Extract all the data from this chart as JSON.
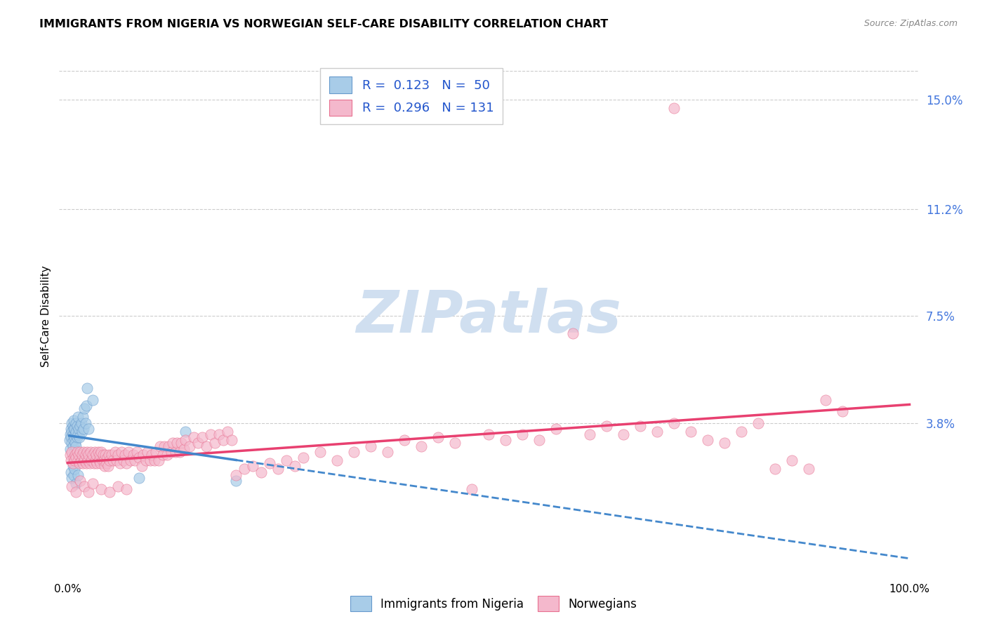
{
  "title": "IMMIGRANTS FROM NIGERIA VS NORWEGIAN SELF-CARE DISABILITY CORRELATION CHART",
  "source": "Source: ZipAtlas.com",
  "ylabel": "Self-Care Disability",
  "right_yticks": [
    0.038,
    0.075,
    0.112,
    0.15
  ],
  "right_yticklabels": [
    "3.8%",
    "7.5%",
    "11.2%",
    "15.0%"
  ],
  "ymin": -0.015,
  "ymax": 0.165,
  "xmin": -0.01,
  "xmax": 1.01,
  "color_blue": "#a8cce8",
  "color_pink": "#f4b8cc",
  "color_blue_edge": "#6699cc",
  "color_pink_edge": "#e87090",
  "trendline_blue_color": "#4488cc",
  "trendline_pink_color": "#e84070",
  "watermark_color": "#d0dff0",
  "grid_color": "#cccccc",
  "background_color": "#ffffff",
  "blue_scatter": [
    [
      0.002,
      0.032
    ],
    [
      0.003,
      0.034
    ],
    [
      0.003,
      0.029
    ],
    [
      0.004,
      0.033
    ],
    [
      0.004,
      0.036
    ],
    [
      0.005,
      0.031
    ],
    [
      0.005,
      0.035
    ],
    [
      0.005,
      0.038
    ],
    [
      0.006,
      0.03
    ],
    [
      0.006,
      0.034
    ],
    [
      0.006,
      0.037
    ],
    [
      0.007,
      0.032
    ],
    [
      0.007,
      0.036
    ],
    [
      0.007,
      0.039
    ],
    [
      0.008,
      0.033
    ],
    [
      0.008,
      0.036
    ],
    [
      0.008,
      0.028
    ],
    [
      0.009,
      0.034
    ],
    [
      0.009,
      0.031
    ],
    [
      0.01,
      0.035
    ],
    [
      0.01,
      0.03
    ],
    [
      0.01,
      0.038
    ],
    [
      0.011,
      0.033
    ],
    [
      0.011,
      0.037
    ],
    [
      0.012,
      0.034
    ],
    [
      0.012,
      0.04
    ],
    [
      0.013,
      0.036
    ],
    [
      0.014,
      0.033
    ],
    [
      0.015,
      0.037
    ],
    [
      0.016,
      0.038
    ],
    [
      0.017,
      0.035
    ],
    [
      0.018,
      0.04
    ],
    [
      0.019,
      0.036
    ],
    [
      0.02,
      0.043
    ],
    [
      0.021,
      0.038
    ],
    [
      0.022,
      0.044
    ],
    [
      0.023,
      0.05
    ],
    [
      0.025,
      0.036
    ],
    [
      0.03,
      0.046
    ],
    [
      0.004,
      0.021
    ],
    [
      0.005,
      0.019
    ],
    [
      0.006,
      0.023
    ],
    [
      0.007,
      0.02
    ],
    [
      0.008,
      0.022
    ],
    [
      0.01,
      0.017
    ],
    [
      0.012,
      0.02
    ],
    [
      0.085,
      0.019
    ],
    [
      0.14,
      0.035
    ],
    [
      0.2,
      0.018
    ]
  ],
  "pink_scatter": [
    [
      0.003,
      0.027
    ],
    [
      0.004,
      0.025
    ],
    [
      0.005,
      0.028
    ],
    [
      0.006,
      0.024
    ],
    [
      0.007,
      0.026
    ],
    [
      0.008,
      0.025
    ],
    [
      0.009,
      0.027
    ],
    [
      0.01,
      0.026
    ],
    [
      0.011,
      0.028
    ],
    [
      0.012,
      0.025
    ],
    [
      0.013,
      0.027
    ],
    [
      0.014,
      0.024
    ],
    [
      0.015,
      0.028
    ],
    [
      0.016,
      0.025
    ],
    [
      0.017,
      0.027
    ],
    [
      0.018,
      0.024
    ],
    [
      0.019,
      0.028
    ],
    [
      0.02,
      0.025
    ],
    [
      0.021,
      0.027
    ],
    [
      0.022,
      0.024
    ],
    [
      0.023,
      0.028
    ],
    [
      0.024,
      0.025
    ],
    [
      0.025,
      0.027
    ],
    [
      0.026,
      0.024
    ],
    [
      0.027,
      0.028
    ],
    [
      0.028,
      0.025
    ],
    [
      0.03,
      0.027
    ],
    [
      0.031,
      0.024
    ],
    [
      0.032,
      0.028
    ],
    [
      0.033,
      0.025
    ],
    [
      0.034,
      0.027
    ],
    [
      0.035,
      0.024
    ],
    [
      0.036,
      0.028
    ],
    [
      0.037,
      0.025
    ],
    [
      0.038,
      0.027
    ],
    [
      0.039,
      0.024
    ],
    [
      0.04,
      0.028
    ],
    [
      0.041,
      0.025
    ],
    [
      0.042,
      0.027
    ],
    [
      0.043,
      0.025
    ],
    [
      0.044,
      0.023
    ],
    [
      0.045,
      0.027
    ],
    [
      0.046,
      0.024
    ],
    [
      0.047,
      0.026
    ],
    [
      0.048,
      0.023
    ],
    [
      0.049,
      0.027
    ],
    [
      0.05,
      0.025
    ],
    [
      0.052,
      0.027
    ],
    [
      0.054,
      0.025
    ],
    [
      0.056,
      0.028
    ],
    [
      0.058,
      0.025
    ],
    [
      0.06,
      0.027
    ],
    [
      0.062,
      0.024
    ],
    [
      0.064,
      0.028
    ],
    [
      0.066,
      0.025
    ],
    [
      0.068,
      0.027
    ],
    [
      0.07,
      0.024
    ],
    [
      0.072,
      0.028
    ],
    [
      0.075,
      0.025
    ],
    [
      0.078,
      0.027
    ],
    [
      0.08,
      0.025
    ],
    [
      0.082,
      0.028
    ],
    [
      0.085,
      0.026
    ],
    [
      0.088,
      0.023
    ],
    [
      0.09,
      0.027
    ],
    [
      0.093,
      0.025
    ],
    [
      0.095,
      0.028
    ],
    [
      0.098,
      0.025
    ],
    [
      0.1,
      0.027
    ],
    [
      0.103,
      0.025
    ],
    [
      0.105,
      0.028
    ],
    [
      0.108,
      0.025
    ],
    [
      0.11,
      0.03
    ],
    [
      0.113,
      0.027
    ],
    [
      0.115,
      0.03
    ],
    [
      0.118,
      0.027
    ],
    [
      0.12,
      0.03
    ],
    [
      0.123,
      0.028
    ],
    [
      0.125,
      0.031
    ],
    [
      0.128,
      0.028
    ],
    [
      0.13,
      0.031
    ],
    [
      0.133,
      0.028
    ],
    [
      0.135,
      0.031
    ],
    [
      0.138,
      0.029
    ],
    [
      0.14,
      0.032
    ],
    [
      0.145,
      0.03
    ],
    [
      0.15,
      0.033
    ],
    [
      0.155,
      0.031
    ],
    [
      0.16,
      0.033
    ],
    [
      0.165,
      0.03
    ],
    [
      0.17,
      0.034
    ],
    [
      0.175,
      0.031
    ],
    [
      0.18,
      0.034
    ],
    [
      0.185,
      0.032
    ],
    [
      0.19,
      0.035
    ],
    [
      0.195,
      0.032
    ],
    [
      0.2,
      0.02
    ],
    [
      0.21,
      0.022
    ],
    [
      0.22,
      0.023
    ],
    [
      0.23,
      0.021
    ],
    [
      0.24,
      0.024
    ],
    [
      0.25,
      0.022
    ],
    [
      0.26,
      0.025
    ],
    [
      0.27,
      0.023
    ],
    [
      0.28,
      0.026
    ],
    [
      0.3,
      0.028
    ],
    [
      0.32,
      0.025
    ],
    [
      0.34,
      0.028
    ],
    [
      0.36,
      0.03
    ],
    [
      0.38,
      0.028
    ],
    [
      0.4,
      0.032
    ],
    [
      0.42,
      0.03
    ],
    [
      0.44,
      0.033
    ],
    [
      0.46,
      0.031
    ],
    [
      0.48,
      0.015
    ],
    [
      0.5,
      0.034
    ],
    [
      0.52,
      0.032
    ],
    [
      0.54,
      0.034
    ],
    [
      0.56,
      0.032
    ],
    [
      0.58,
      0.036
    ],
    [
      0.6,
      0.069
    ],
    [
      0.62,
      0.034
    ],
    [
      0.64,
      0.037
    ],
    [
      0.66,
      0.034
    ],
    [
      0.68,
      0.037
    ],
    [
      0.7,
      0.035
    ],
    [
      0.72,
      0.038
    ],
    [
      0.72,
      0.147
    ],
    [
      0.74,
      0.035
    ],
    [
      0.76,
      0.032
    ],
    [
      0.78,
      0.031
    ],
    [
      0.8,
      0.035
    ],
    [
      0.82,
      0.038
    ],
    [
      0.84,
      0.022
    ],
    [
      0.86,
      0.025
    ],
    [
      0.88,
      0.022
    ],
    [
      0.9,
      0.046
    ],
    [
      0.92,
      0.042
    ],
    [
      0.005,
      0.016
    ],
    [
      0.01,
      0.014
    ],
    [
      0.015,
      0.018
    ],
    [
      0.02,
      0.016
    ],
    [
      0.025,
      0.014
    ],
    [
      0.03,
      0.017
    ],
    [
      0.04,
      0.015
    ],
    [
      0.05,
      0.014
    ],
    [
      0.06,
      0.016
    ],
    [
      0.07,
      0.015
    ]
  ]
}
